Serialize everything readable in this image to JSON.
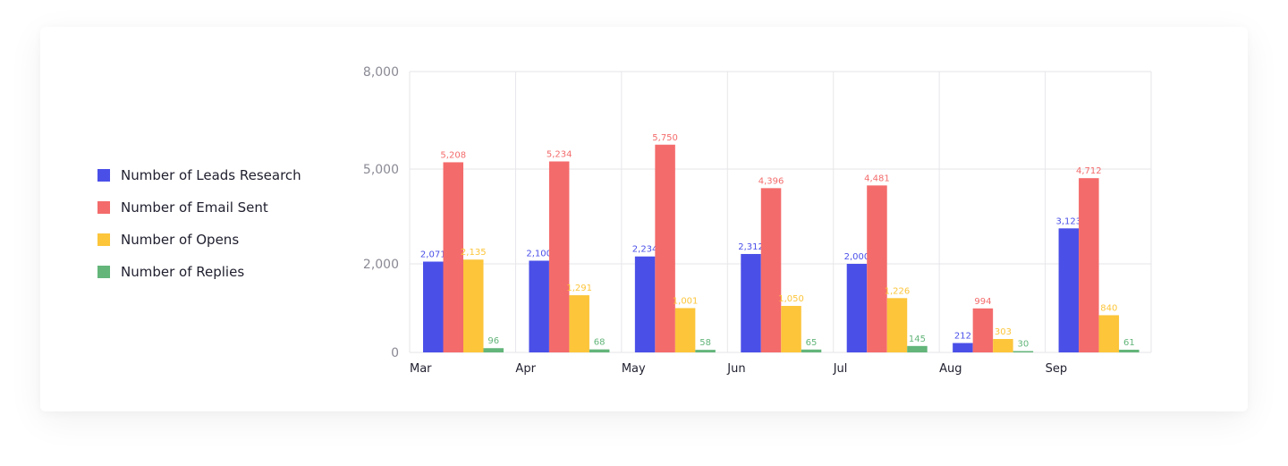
{
  "chart_data": {
    "type": "bar",
    "categories": [
      "Mar",
      "Apr",
      "May",
      "Jun",
      "Jul",
      "Aug",
      "Sep"
    ],
    "series": [
      {
        "name": "Number of Leads Research",
        "color": "#4a4fe8",
        "values": [
          2071,
          2100,
          2234,
          2312,
          2000,
          212,
          3123
        ],
        "labels": [
          "2,071",
          "2,100",
          "2,234",
          "2,312",
          "2,000",
          "212",
          "3,123"
        ]
      },
      {
        "name": "Number of Email Sent",
        "color": "#f46b6b",
        "values": [
          5208,
          5234,
          5750,
          4396,
          4481,
          994,
          4712
        ],
        "labels": [
          "5,208",
          "5,234",
          "5,750",
          "4,396",
          "4,481",
          "994",
          "4,712"
        ]
      },
      {
        "name": "Number of Opens",
        "color": "#fcc53a",
        "values": [
          2135,
          1291,
          1001,
          1050,
          1226,
          303,
          840
        ],
        "labels": [
          "2,135",
          "1,291",
          "1,001",
          "1,050",
          "1,226",
          "303",
          "840"
        ]
      },
      {
        "name": "Number of Replies",
        "color": "#63b57a",
        "values": [
          96,
          68,
          58,
          65,
          145,
          30,
          61
        ],
        "labels": [
          "96",
          "68",
          "58",
          "65",
          "145",
          "30",
          "61"
        ]
      }
    ],
    "y_ticks": [
      "0",
      "2,000",
      "5,000",
      "8,000"
    ],
    "ylim": [
      0,
      8000
    ],
    "grid": true,
    "legend_position": "left",
    "title": "",
    "xlabel": "",
    "ylabel": ""
  }
}
